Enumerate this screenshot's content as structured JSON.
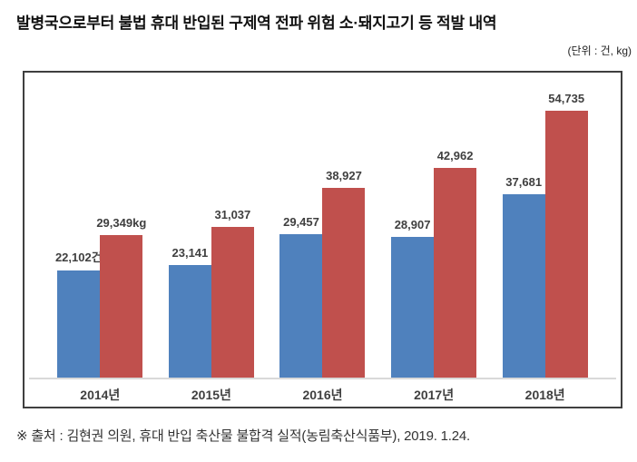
{
  "header": {
    "title": "발병국으로부터 불법 휴대 반입된 구제역 전파 위험 소·돼지고기 등 적발 내역",
    "unit_label": "(단위 : 건, kg)"
  },
  "footer": {
    "source": "※ 출처 : 김현권 의원, 휴대 반입 축산물 불합격 실적(농림축산식품부), 2019. 1.24."
  },
  "colors": {
    "cases_bar": "#4f81bd",
    "kg_bar": "#c0504d",
    "axis_line": "#d9d9d9",
    "label_text": "#3f3f3f",
    "box_border": "#3f3f3f"
  },
  "chart_data": {
    "type": "bar",
    "title": "발병국으로부터 불법 휴대 반입된 구제역 전파 위험 소·돼지고기 등 적발 내역",
    "unit": "건, kg",
    "categories": [
      "2014년",
      "2015년",
      "2016년",
      "2017년",
      "2018년"
    ],
    "series": [
      {
        "name": "건(cases)",
        "color_key": "cases_bar",
        "values": [
          22102,
          23141,
          29457,
          28907,
          37681
        ],
        "labels": [
          "22,102건",
          "23,141",
          "29,457",
          "28,907",
          "37,681"
        ]
      },
      {
        "name": "kg",
        "color_key": "kg_bar",
        "values": [
          29349,
          31037,
          38927,
          42962,
          54735
        ],
        "labels": [
          "29,349kg",
          "31,037",
          "38,927",
          "42,962",
          "54,735"
        ]
      }
    ],
    "ylim": [
      0,
      62500
    ],
    "grid": false,
    "legend": "none",
    "axis_labels_shown": false
  }
}
